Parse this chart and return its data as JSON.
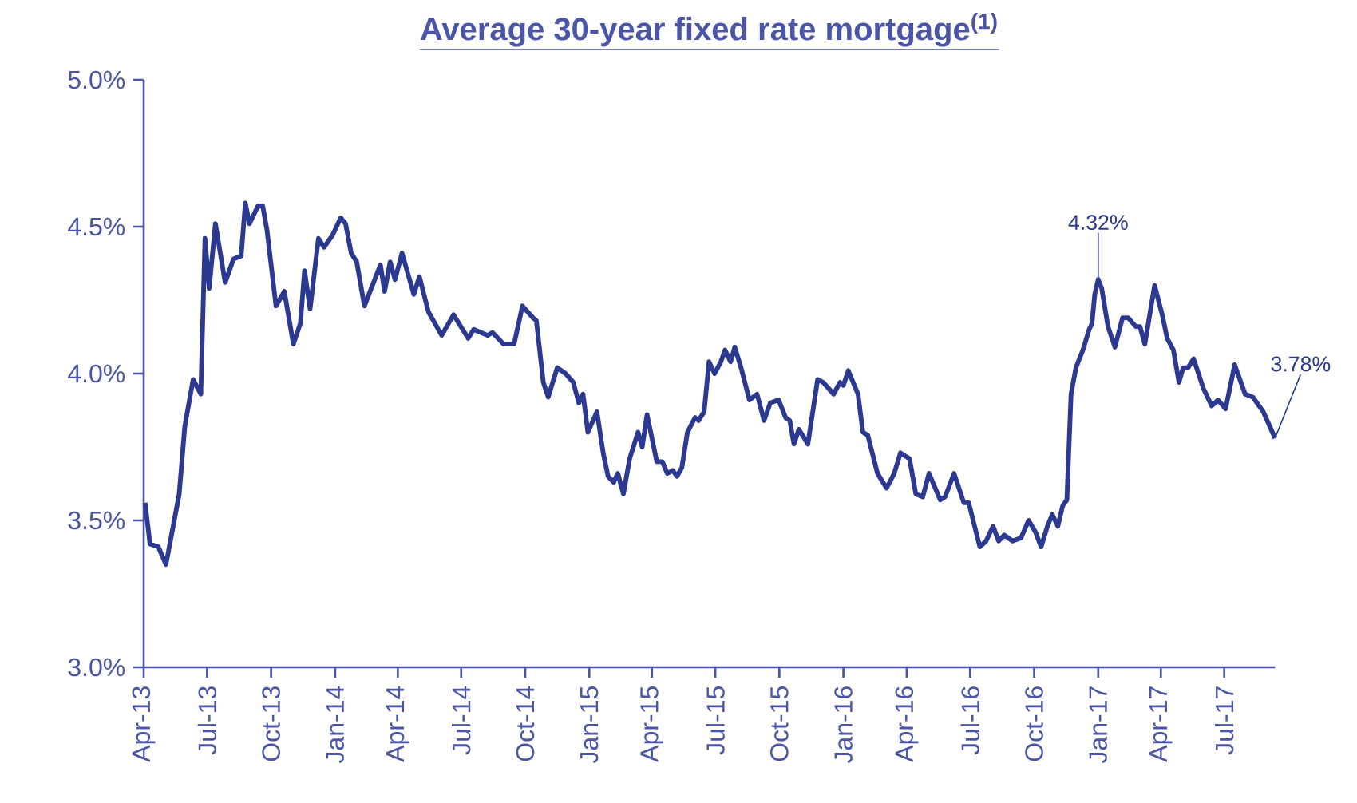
{
  "chart_data": {
    "type": "line",
    "title": "Average 30-year fixed rate mortgage$^{(1)}$",
    "x": [
      "2013-04-03",
      "2013-04-10",
      "2013-04-22",
      "2013-05-03",
      "2013-05-22",
      "2013-05-30",
      "2013-06-11",
      "2013-06-22",
      "2013-06-28",
      "2013-07-04",
      "2013-07-13",
      "2013-07-27",
      "2013-08-08",
      "2013-08-19",
      "2013-08-25",
      "2013-08-31",
      "2013-09-12",
      "2013-09-19",
      "2013-09-25",
      "2013-10-08",
      "2013-10-20",
      "2013-11-02",
      "2013-11-12",
      "2013-11-18",
      "2013-11-26",
      "2013-12-08",
      "2013-12-16",
      "2013-12-28",
      "2014-01-09",
      "2014-01-16",
      "2014-01-24",
      "2014-02-01",
      "2014-02-12",
      "2014-03-07",
      "2014-03-13",
      "2014-03-21",
      "2014-03-28",
      "2014-04-07",
      "2014-04-24",
      "2014-05-02",
      "2014-05-15",
      "2014-06-03",
      "2014-06-20",
      "2014-07-11",
      "2014-07-19",
      "2014-08-08",
      "2014-08-15",
      "2014-08-31",
      "2014-09-15",
      "2014-09-27",
      "2014-10-12",
      "2014-10-17",
      "2014-10-27",
      "2014-11-03",
      "2014-11-16",
      "2014-11-28",
      "2014-12-09",
      "2014-12-17",
      "2014-12-23",
      "2014-12-30",
      "2015-01-12",
      "2015-01-21",
      "2015-01-28",
      "2015-02-05",
      "2015-02-11",
      "2015-02-19",
      "2015-02-28",
      "2015-03-08",
      "2015-03-12",
      "2015-03-18",
      "2015-03-25",
      "2015-04-08",
      "2015-04-16",
      "2015-04-23",
      "2015-05-01",
      "2015-05-07",
      "2015-05-14",
      "2015-05-22",
      "2015-06-02",
      "2015-06-07",
      "2015-06-15",
      "2015-06-22",
      "2015-06-30",
      "2015-07-09",
      "2015-07-15",
      "2015-07-23",
      "2015-07-29",
      "2015-08-07",
      "2015-08-19",
      "2015-08-30",
      "2015-09-09",
      "2015-09-18",
      "2015-09-30",
      "2015-10-10",
      "2015-10-16",
      "2015-10-22",
      "2015-10-29",
      "2015-11-11",
      "2015-11-25",
      "2015-12-03",
      "2015-12-18",
      "2015-12-27",
      "2016-01-01",
      "2016-01-08",
      "2016-01-22",
      "2016-01-29",
      "2016-02-05",
      "2016-02-19",
      "2016-03-03",
      "2016-03-14",
      "2016-03-23",
      "2016-04-05",
      "2016-04-14",
      "2016-04-24",
      "2016-05-03",
      "2016-05-19",
      "2016-05-26",
      "2016-06-08",
      "2016-06-22",
      "2016-06-29",
      "2016-07-15",
      "2016-07-24",
      "2016-08-03",
      "2016-08-11",
      "2016-08-19",
      "2016-08-31",
      "2016-09-12",
      "2016-09-23",
      "2016-10-03",
      "2016-10-11",
      "2016-10-20",
      "2016-10-27",
      "2016-11-04",
      "2016-11-11",
      "2016-11-17",
      "2016-11-23",
      "2016-11-30",
      "2016-12-10",
      "2016-12-19",
      "2016-12-23",
      "2016-12-27",
      "2017-01-01",
      "2017-01-06",
      "2017-01-15",
      "2017-01-25",
      "2017-02-05",
      "2017-02-13",
      "2017-02-24",
      "2017-03-02",
      "2017-03-09",
      "2017-03-23",
      "2017-04-03",
      "2017-04-10",
      "2017-04-19",
      "2017-04-27",
      "2017-05-03",
      "2017-05-10",
      "2017-05-18",
      "2017-06-01",
      "2017-06-13",
      "2017-06-22",
      "2017-07-03",
      "2017-07-16",
      "2017-07-31",
      "2017-08-11",
      "2017-08-26",
      "2017-09-12"
    ],
    "series": [
      {
        "color": "#2b3990",
        "values": [
          3.56,
          3.42,
          3.41,
          3.35,
          3.59,
          3.82,
          3.98,
          3.93,
          4.46,
          4.29,
          4.51,
          4.31,
          4.39,
          4.4,
          4.58,
          4.51,
          4.57,
          4.57,
          4.49,
          4.23,
          4.28,
          4.1,
          4.17,
          4.35,
          4.22,
          4.46,
          4.43,
          4.47,
          4.53,
          4.51,
          4.41,
          4.38,
          4.23,
          4.37,
          4.28,
          4.38,
          4.32,
          4.41,
          4.27,
          4.33,
          4.21,
          4.13,
          4.2,
          4.12,
          4.15,
          4.13,
          4.14,
          4.1,
          4.1,
          4.23,
          4.19,
          4.18,
          3.97,
          3.92,
          4.02,
          4.0,
          3.97,
          3.9,
          3.93,
          3.8,
          3.87,
          3.73,
          3.65,
          3.63,
          3.66,
          3.59,
          3.71,
          3.77,
          3.8,
          3.75,
          3.86,
          3.7,
          3.7,
          3.66,
          3.67,
          3.65,
          3.68,
          3.8,
          3.85,
          3.84,
          3.87,
          4.04,
          4.0,
          4.04,
          4.08,
          4.04,
          4.09,
          4.02,
          3.91,
          3.93,
          3.84,
          3.9,
          3.91,
          3.85,
          3.84,
          3.76,
          3.81,
          3.76,
          3.98,
          3.97,
          3.93,
          3.97,
          3.96,
          4.01,
          3.93,
          3.8,
          3.79,
          3.66,
          3.61,
          3.66,
          3.73,
          3.71,
          3.59,
          3.58,
          3.66,
          3.57,
          3.58,
          3.66,
          3.56,
          3.56,
          3.41,
          3.43,
          3.48,
          3.43,
          3.45,
          3.43,
          3.44,
          3.5,
          3.46,
          3.41,
          3.48,
          3.52,
          3.48,
          3.55,
          3.57,
          3.93,
          4.02,
          4.08,
          4.15,
          4.17,
          4.27,
          4.32,
          4.29,
          4.16,
          4.09,
          4.19,
          4.19,
          4.16,
          4.16,
          4.1,
          4.3,
          4.2,
          4.12,
          4.08,
          3.97,
          4.02,
          4.02,
          4.05,
          3.95,
          3.89,
          3.91,
          3.88,
          4.03,
          3.93,
          3.92,
          3.87,
          3.78
        ]
      }
    ],
    "xlim": [
      "2013-04-01",
      "2017-09-12"
    ],
    "xticks": [
      {
        "value": "2013-04-01",
        "label": "Apr-13"
      },
      {
        "value": "2013-07-01",
        "label": "Jul-13"
      },
      {
        "value": "2013-10-01",
        "label": "Oct-13"
      },
      {
        "value": "2014-01-01",
        "label": "Jan-14"
      },
      {
        "value": "2014-04-01",
        "label": "Apr-14"
      },
      {
        "value": "2014-07-01",
        "label": "Jul-14"
      },
      {
        "value": "2014-10-01",
        "label": "Oct-14"
      },
      {
        "value": "2015-01-01",
        "label": "Jan-15"
      },
      {
        "value": "2015-04-01",
        "label": "Apr-15"
      },
      {
        "value": "2015-07-01",
        "label": "Jul-15"
      },
      {
        "value": "2015-10-01",
        "label": "Oct-15"
      },
      {
        "value": "2016-01-01",
        "label": "Jan-16"
      },
      {
        "value": "2016-04-01",
        "label": "Apr-16"
      },
      {
        "value": "2016-07-01",
        "label": "Jul-16"
      },
      {
        "value": "2016-10-01",
        "label": "Oct-16"
      },
      {
        "value": "2017-01-01",
        "label": "Jan-17"
      },
      {
        "value": "2017-04-01",
        "label": "Apr-17"
      },
      {
        "value": "2017-07-01",
        "label": "Jul-17"
      }
    ],
    "ylim": [
      3.0,
      5.0
    ],
    "yticks": [
      {
        "value": 3.0,
        "label": "3.0%"
      },
      {
        "value": 3.5,
        "label": "3.5%"
      },
      {
        "value": 4.0,
        "label": "4.0%"
      },
      {
        "value": 4.5,
        "label": "4.5%"
      },
      {
        "value": 5.0,
        "label": "5.0%"
      }
    ],
    "annotations": [
      {
        "text": "4.32%",
        "x": "2017-01-01",
        "y": 4.32
      },
      {
        "text": "3.78%",
        "x": "2017-09-12",
        "y": 3.78
      }
    ],
    "grid": false,
    "legend": false,
    "marker": "none",
    "line_style": "solid"
  }
}
